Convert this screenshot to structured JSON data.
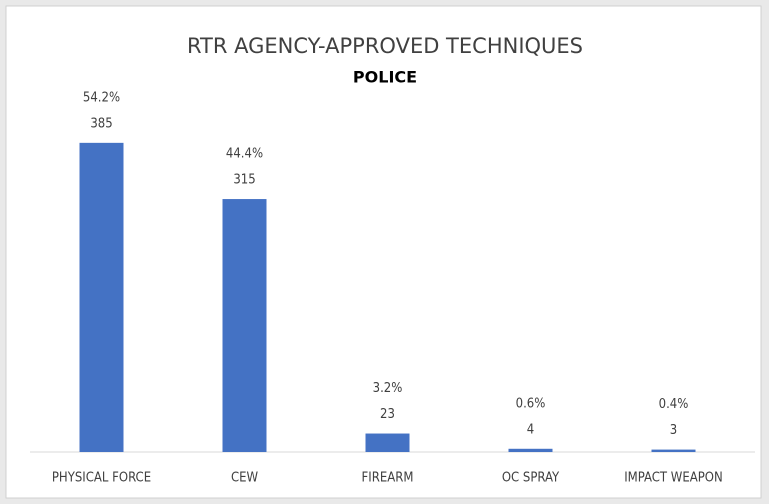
{
  "chart_data": {
    "type": "bar",
    "title": "RTR AGENCY-APPROVED TECHNIQUES",
    "subtitle": "POLICE",
    "categories": [
      "PHYSICAL FORCE",
      "CEW",
      "FIREARM",
      "OC SPRAY",
      "IMPACT WEAPON"
    ],
    "values": [
      385,
      315,
      23,
      4,
      3
    ],
    "percent_labels": [
      "54.2%",
      "44.4%",
      "3.2%",
      "0.6%",
      "0.4%"
    ],
    "color": "#4472c4"
  }
}
